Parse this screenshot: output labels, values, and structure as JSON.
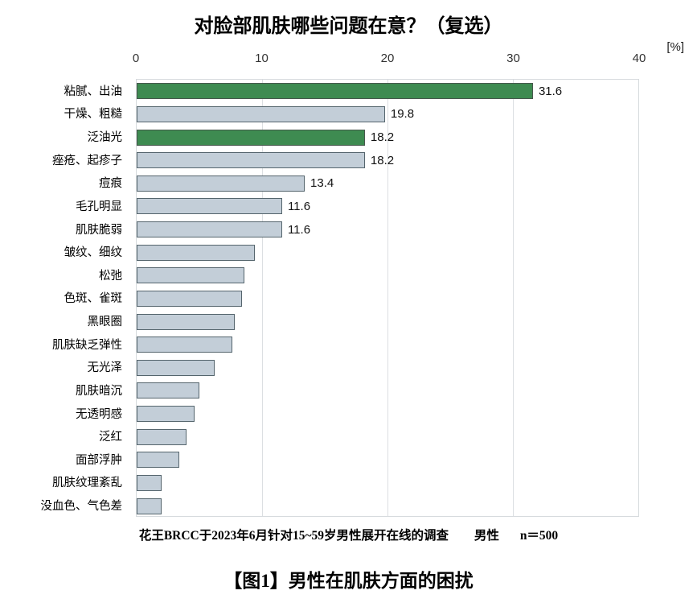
{
  "title": "对脸部肌肤哪些问题在意？（复选）",
  "unit_label": "[%]",
  "footer": {
    "survey_note": "花王BRCC于2023年6月针对15~59岁男性展开在线的调查",
    "group_label": "男性",
    "sample_size": "n＝500"
  },
  "caption": "【图1】男性在肌肤方面的困扰",
  "chart_data": {
    "type": "bar",
    "orientation": "horizontal",
    "title": "对脸部肌肤哪些问题在意？（复选）",
    "xlabel": "[%]",
    "xlim": [
      0,
      40
    ],
    "xticks": [
      0,
      10,
      20,
      30,
      40
    ],
    "grid": "vertical",
    "legend": "none",
    "categories": [
      "粘腻、出油",
      "干燥、粗糙",
      "泛油光",
      "痤疮、起疹子",
      "痘痕",
      "毛孔明显",
      "肌肤脆弱",
      "皱纹、细纹",
      "松弛",
      "色斑、雀斑",
      "黑眼圈",
      "肌肤缺乏弹性",
      "无光泽",
      "肌肤暗沉",
      "无透明感",
      "泛红",
      "面部浮肿",
      "肌肤纹理紊乱",
      "没血色、气色差"
    ],
    "values": [
      31.6,
      19.8,
      18.2,
      18.2,
      13.4,
      11.6,
      11.6,
      9.4,
      8.6,
      8.4,
      7.8,
      7.6,
      6.2,
      5.0,
      4.6,
      4.0,
      3.4,
      2.0,
      2.0
    ],
    "bars": [
      {
        "label": "粘腻、出油",
        "value": 31.6,
        "value_label": "31.6",
        "highlight": true
      },
      {
        "label": "干燥、粗糙",
        "value": 19.8,
        "value_label": "19.8",
        "highlight": false
      },
      {
        "label": "泛油光",
        "value": 18.2,
        "value_label": "18.2",
        "highlight": true
      },
      {
        "label": "痤疮、起疹子",
        "value": 18.2,
        "value_label": "18.2",
        "highlight": false
      },
      {
        "label": "痘痕",
        "value": 13.4,
        "value_label": "13.4",
        "highlight": false
      },
      {
        "label": "毛孔明显",
        "value": 11.6,
        "value_label": "11.6",
        "highlight": false
      },
      {
        "label": "肌肤脆弱",
        "value": 11.6,
        "value_label": "11.6",
        "highlight": false
      },
      {
        "label": "皱纹、细纹",
        "value": 9.4,
        "value_label": "",
        "highlight": false
      },
      {
        "label": "松弛",
        "value": 8.6,
        "value_label": "",
        "highlight": false
      },
      {
        "label": "色斑、雀斑",
        "value": 8.4,
        "value_label": "",
        "highlight": false
      },
      {
        "label": "黑眼圈",
        "value": 7.8,
        "value_label": "",
        "highlight": false
      },
      {
        "label": "肌肤缺乏弹性",
        "value": 7.6,
        "value_label": "",
        "highlight": false
      },
      {
        "label": "无光泽",
        "value": 6.2,
        "value_label": "",
        "highlight": false
      },
      {
        "label": "肌肤暗沉",
        "value": 5.0,
        "value_label": "",
        "highlight": false
      },
      {
        "label": "无透明感",
        "value": 4.6,
        "value_label": "",
        "highlight": false
      },
      {
        "label": "泛红",
        "value": 4.0,
        "value_label": "",
        "highlight": false
      },
      {
        "label": "面部浮肿",
        "value": 3.4,
        "value_label": "",
        "highlight": false
      },
      {
        "label": "肌肤纹理紊乱",
        "value": 2.0,
        "value_label": "",
        "highlight": false
      },
      {
        "label": "没血色、气色差",
        "value": 2.0,
        "value_label": "",
        "highlight": false
      }
    ],
    "colors": {
      "highlight_bar": "#3e8b51",
      "default_bar": "#c3ced8",
      "bar_border": "#55656d",
      "highlight_bar_border": "#47584d",
      "gridline": "#dcdfe2",
      "plot_border": "#d6dadd"
    }
  }
}
